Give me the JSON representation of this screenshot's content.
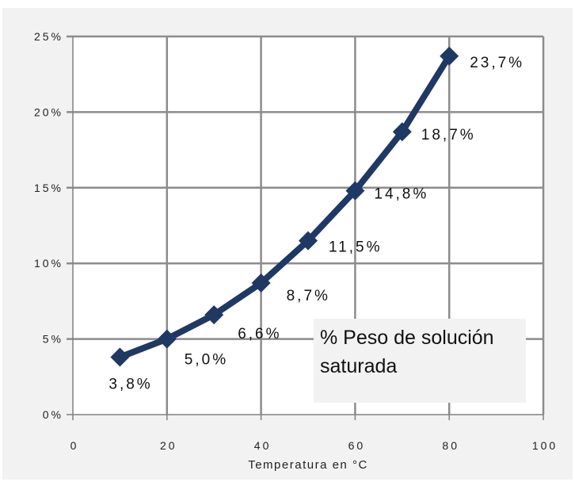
{
  "chart_data": {
    "type": "line",
    "x": [
      10,
      20,
      30,
      40,
      50,
      60,
      70,
      80
    ],
    "series": [
      {
        "name": "% Peso de solución saturada",
        "values": [
          3.8,
          5.0,
          6.6,
          8.7,
          11.5,
          14.8,
          18.7,
          23.7
        ],
        "labels": [
          "3,8%",
          "5,0%",
          "6,6%",
          "8,7%",
          "11,5%",
          "14,8%",
          "18,7%",
          "23,7%"
        ]
      }
    ],
    "xlabel": "Temperatura en °C",
    "ylabel": "",
    "xlim": [
      0,
      100
    ],
    "ylim": [
      0,
      25
    ],
    "x_ticks": [
      "0",
      "20",
      "40",
      "60",
      "80",
      "100"
    ],
    "y_ticks": [
      "0%",
      "5%",
      "10%",
      "15%",
      "20%",
      "25%"
    ],
    "grid": true,
    "legend_position": "bottom-right-inside",
    "colors": {
      "line": "#1f3864",
      "grid": "#8c8c8c",
      "plot_bg": "#ffffff",
      "panel_bg": "#f2f2f2"
    }
  }
}
